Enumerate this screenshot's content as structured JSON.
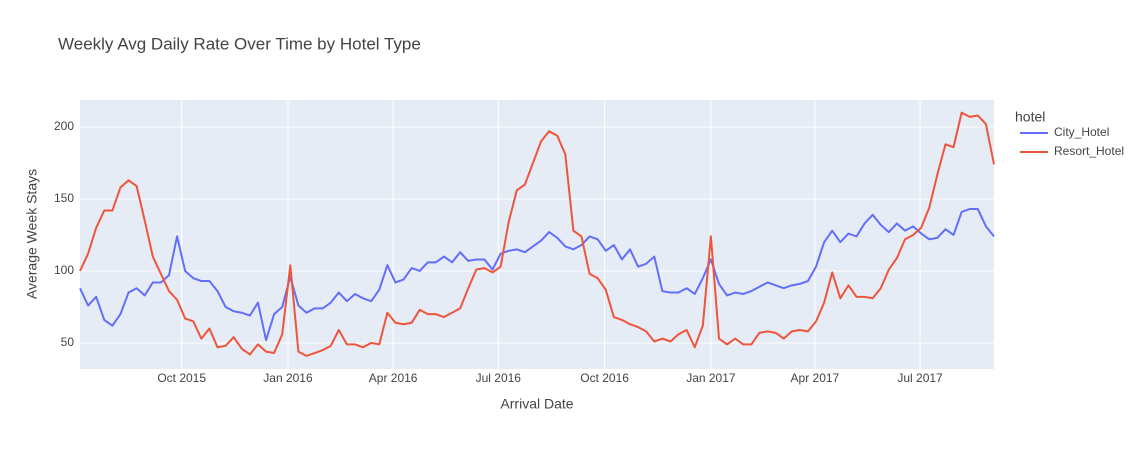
{
  "chart_data": {
    "type": "line",
    "title": "Weekly Avg Daily Rate Over Time by Hotel Type",
    "x_label": "Arrival Date",
    "y_label": "Average Week Stays",
    "legend_title": "hotel",
    "x": [
      "2015-07-05",
      "2015-07-12",
      "2015-07-19",
      "2015-07-26",
      "2015-08-02",
      "2015-08-09",
      "2015-08-16",
      "2015-08-23",
      "2015-08-30",
      "2015-09-06",
      "2015-09-13",
      "2015-09-20",
      "2015-09-27",
      "2015-10-04",
      "2015-10-11",
      "2015-10-18",
      "2015-10-25",
      "2015-11-01",
      "2015-11-08",
      "2015-11-15",
      "2015-11-22",
      "2015-11-29",
      "2015-12-06",
      "2015-12-13",
      "2015-12-20",
      "2015-12-27",
      "2016-01-03",
      "2016-01-10",
      "2016-01-17",
      "2016-01-24",
      "2016-01-31",
      "2016-02-07",
      "2016-02-14",
      "2016-02-21",
      "2016-02-28",
      "2016-03-06",
      "2016-03-13",
      "2016-03-20",
      "2016-03-27",
      "2016-04-03",
      "2016-04-10",
      "2016-04-17",
      "2016-04-24",
      "2016-05-01",
      "2016-05-08",
      "2016-05-15",
      "2016-05-22",
      "2016-05-29",
      "2016-06-05",
      "2016-06-12",
      "2016-06-19",
      "2016-06-26",
      "2016-07-03",
      "2016-07-10",
      "2016-07-17",
      "2016-07-24",
      "2016-07-31",
      "2016-08-07",
      "2016-08-14",
      "2016-08-21",
      "2016-08-28",
      "2016-09-04",
      "2016-09-11",
      "2016-09-18",
      "2016-09-25",
      "2016-10-02",
      "2016-10-09",
      "2016-10-16",
      "2016-10-23",
      "2016-10-30",
      "2016-11-06",
      "2016-11-13",
      "2016-11-20",
      "2016-11-27",
      "2016-12-04",
      "2016-12-11",
      "2016-12-18",
      "2016-12-25",
      "2017-01-01",
      "2017-01-08",
      "2017-01-15",
      "2017-01-22",
      "2017-01-29",
      "2017-02-05",
      "2017-02-12",
      "2017-02-19",
      "2017-02-26",
      "2017-03-05",
      "2017-03-12",
      "2017-03-19",
      "2017-03-26",
      "2017-04-02",
      "2017-04-09",
      "2017-04-16",
      "2017-04-23",
      "2017-04-30",
      "2017-05-07",
      "2017-05-14",
      "2017-05-21",
      "2017-05-28",
      "2017-06-04",
      "2017-06-11",
      "2017-06-18",
      "2017-06-25",
      "2017-07-02",
      "2017-07-09",
      "2017-07-16",
      "2017-07-23",
      "2017-07-30",
      "2017-08-06",
      "2017-08-13",
      "2017-08-20",
      "2017-08-27",
      "2017-09-03"
    ],
    "series": [
      {
        "name": "City_Hotel",
        "color": "#636efa",
        "values": [
          88,
          76,
          82,
          66,
          62,
          70,
          85,
          88,
          83,
          92,
          92,
          97,
          124,
          100,
          95,
          93,
          93,
          86,
          75,
          72,
          71,
          69,
          78,
          52,
          70,
          75,
          96,
          76,
          71,
          74,
          74,
          78,
          85,
          79,
          84,
          81,
          79,
          87,
          104,
          92,
          94,
          102,
          100,
          106,
          106,
          110,
          106,
          113,
          107,
          108,
          108,
          101,
          112,
          114,
          115,
          113,
          117,
          121,
          127,
          123,
          117,
          115,
          118,
          124,
          122,
          114,
          118,
          108,
          115,
          103,
          105,
          110,
          86,
          85,
          85,
          88,
          84,
          95,
          108,
          91,
          83,
          85,
          84,
          86,
          89,
          92,
          90,
          88,
          90,
          91,
          93,
          103,
          120,
          128,
          120,
          126,
          124,
          133,
          139,
          132,
          127,
          133,
          128,
          131,
          126,
          122,
          123,
          129,
          125,
          141,
          143,
          143,
          131,
          124
        ]
      },
      {
        "name": "Resort_Hotel",
        "color": "#ef553b",
        "values": [
          100,
          112,
          130,
          142,
          142,
          158,
          163,
          159,
          135,
          110,
          98,
          86,
          80,
          67,
          65,
          53,
          60,
          47,
          48,
          54,
          46,
          42,
          49,
          44,
          43,
          56,
          104,
          44,
          41,
          43,
          45,
          48,
          59,
          49,
          49,
          47,
          50,
          49,
          71,
          64,
          63,
          64,
          73,
          70,
          70,
          68,
          71,
          74,
          88,
          101,
          102,
          99,
          103,
          134,
          156,
          160,
          175,
          190,
          197,
          194,
          181,
          128,
          124,
          98,
          95,
          87,
          68,
          66,
          63,
          61,
          58,
          51,
          53,
          51,
          56,
          59,
          47,
          62,
          124,
          53,
          49,
          53,
          49,
          49,
          57,
          58,
          57,
          53,
          58,
          59,
          58,
          65,
          78,
          99,
          81,
          90,
          82,
          82,
          81,
          88,
          101,
          109,
          122,
          125,
          130,
          144,
          167,
          188,
          186,
          210,
          207,
          208,
          202,
          174
        ]
      }
    ],
    "xlim": [
      "2015-07-05",
      "2017-09-03"
    ],
    "xticks": [
      {
        "value": "2015-10-01",
        "label": "Oct 2015"
      },
      {
        "value": "2016-01-01",
        "label": "Jan 2016"
      },
      {
        "value": "2016-04-01",
        "label": "Apr 2016"
      },
      {
        "value": "2016-07-01",
        "label": "Jul 2016"
      },
      {
        "value": "2016-10-01",
        "label": "Oct 2016"
      },
      {
        "value": "2017-01-01",
        "label": "Jan 2017"
      },
      {
        "value": "2017-04-01",
        "label": "Apr 2017"
      },
      {
        "value": "2017-07-01",
        "label": "Jul 2017"
      }
    ],
    "ylim": [
      31.9,
      218.75
    ],
    "yticks": [
      50,
      100,
      150,
      200
    ],
    "grid": true
  }
}
